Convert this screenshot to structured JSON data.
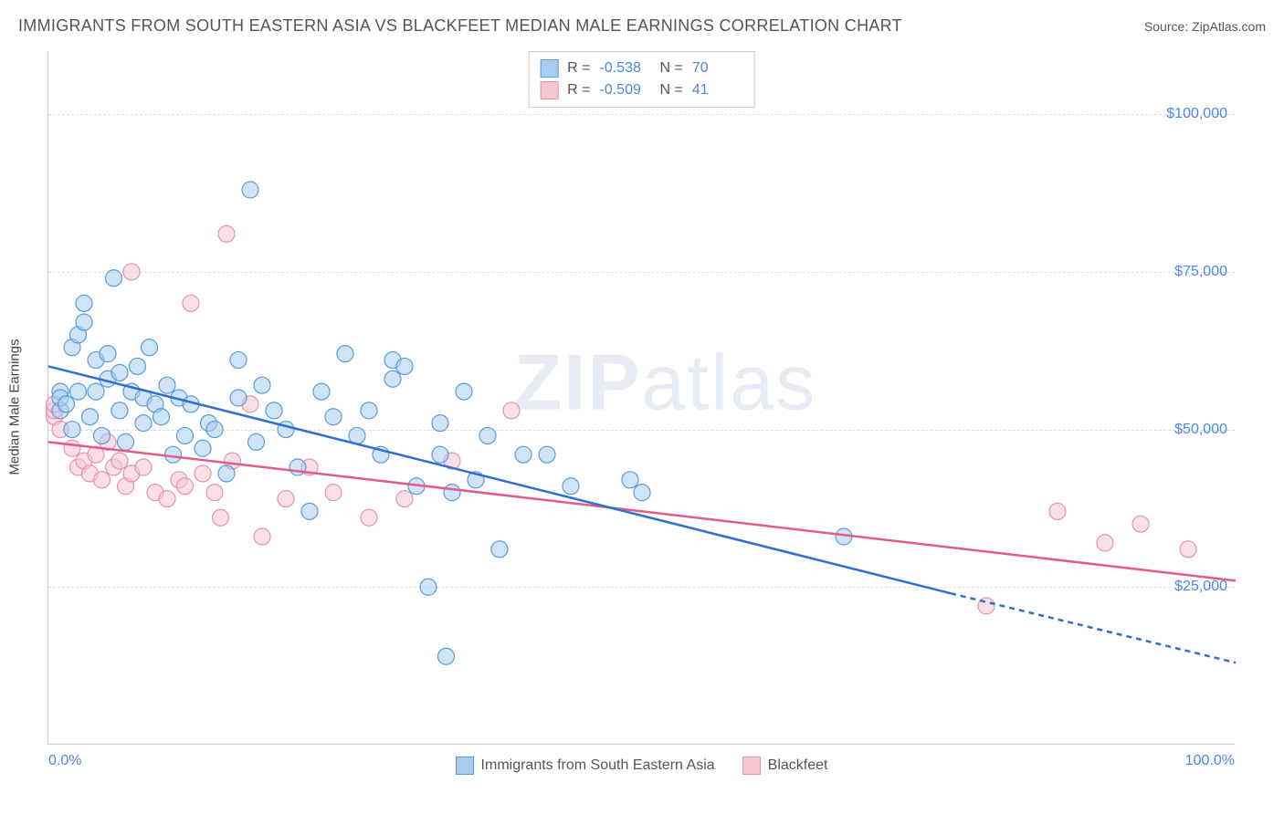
{
  "title": "IMMIGRANTS FROM SOUTH EASTERN ASIA VS BLACKFEET MEDIAN MALE EARNINGS CORRELATION CHART",
  "source": "Source: ZipAtlas.com",
  "y_axis_label": "Median Male Earnings",
  "watermark": {
    "part1": "ZIP",
    "part2": "atlas"
  },
  "colors": {
    "series_a_fill": "#a9cdf0",
    "series_a_stroke": "#5a9bd8",
    "series_a_line": "#2e6fd0",
    "series_b_fill": "#f6c6d2",
    "series_b_stroke": "#e593ab",
    "series_b_line": "#e35b87",
    "axis_text": "#4a86e8",
    "grid": "#dddddd",
    "title_text": "#555555"
  },
  "chart": {
    "type": "scatter",
    "xlim": [
      0,
      100
    ],
    "ylim": [
      0,
      110000
    ],
    "y_ticks": [
      25000,
      50000,
      75000,
      100000
    ],
    "y_tick_labels": [
      "$25,000",
      "$50,000",
      "$75,000",
      "$100,000"
    ],
    "x_tick_left": "0.0%",
    "x_tick_right": "100.0%",
    "marker_radius": 9,
    "marker_opacity": 0.55,
    "line_width": 2.5,
    "series_a": {
      "name": "Immigrants from South Eastern Asia",
      "r_label": "R =",
      "r_value": "-0.538",
      "n_label": "N =",
      "n_value": "70",
      "trend": {
        "x1": 0,
        "y1": 60000,
        "x2": 76,
        "y2": 24000,
        "dash_x2": 100,
        "dash_y2": 13000
      },
      "points": [
        [
          1,
          53000
        ],
        [
          1,
          56000
        ],
        [
          1,
          55000
        ],
        [
          1.5,
          54000
        ],
        [
          2,
          63000
        ],
        [
          2,
          50000
        ],
        [
          2.5,
          65000
        ],
        [
          2.5,
          56000
        ],
        [
          3,
          70000
        ],
        [
          3,
          67000
        ],
        [
          3.5,
          52000
        ],
        [
          4,
          61000
        ],
        [
          4,
          56000
        ],
        [
          4.5,
          49000
        ],
        [
          5,
          58000
        ],
        [
          5,
          62000
        ],
        [
          5.5,
          74000
        ],
        [
          6,
          53000
        ],
        [
          6,
          59000
        ],
        [
          6.5,
          48000
        ],
        [
          7,
          56000
        ],
        [
          7.5,
          60000
        ],
        [
          8,
          55000
        ],
        [
          8,
          51000
        ],
        [
          8.5,
          63000
        ],
        [
          9,
          54000
        ],
        [
          9.5,
          52000
        ],
        [
          10,
          57000
        ],
        [
          10.5,
          46000
        ],
        [
          11,
          55000
        ],
        [
          11.5,
          49000
        ],
        [
          12,
          54000
        ],
        [
          13,
          47000
        ],
        [
          13.5,
          51000
        ],
        [
          14,
          50000
        ],
        [
          15,
          43000
        ],
        [
          16,
          55000
        ],
        [
          16,
          61000
        ],
        [
          17,
          88000
        ],
        [
          17.5,
          48000
        ],
        [
          18,
          57000
        ],
        [
          19,
          53000
        ],
        [
          20,
          50000
        ],
        [
          21,
          44000
        ],
        [
          22,
          37000
        ],
        [
          23,
          56000
        ],
        [
          24,
          52000
        ],
        [
          25,
          62000
        ],
        [
          26,
          49000
        ],
        [
          27,
          53000
        ],
        [
          28,
          46000
        ],
        [
          29,
          61000
        ],
        [
          29,
          58000
        ],
        [
          30,
          60000
        ],
        [
          31,
          41000
        ],
        [
          32,
          25000
        ],
        [
          33,
          46000
        ],
        [
          33,
          51000
        ],
        [
          33.5,
          14000
        ],
        [
          34,
          40000
        ],
        [
          35,
          56000
        ],
        [
          36,
          42000
        ],
        [
          37,
          49000
        ],
        [
          38,
          31000
        ],
        [
          40,
          46000
        ],
        [
          42,
          46000
        ],
        [
          44,
          41000
        ],
        [
          49,
          42000
        ],
        [
          50,
          40000
        ],
        [
          67,
          33000
        ]
      ]
    },
    "series_b": {
      "name": "Blackfeet",
      "r_label": "R =",
      "r_value": "-0.509",
      "n_label": "N =",
      "n_value": "41",
      "trend": {
        "x1": 0,
        "y1": 48000,
        "x2": 100,
        "y2": 26000
      },
      "points": [
        [
          0.5,
          52000
        ],
        [
          0.5,
          53000
        ],
        [
          0.5,
          54000
        ],
        [
          1,
          50000
        ],
        [
          2,
          47000
        ],
        [
          2.5,
          44000
        ],
        [
          3,
          45000
        ],
        [
          3.5,
          43000
        ],
        [
          4,
          46000
        ],
        [
          4.5,
          42000
        ],
        [
          5,
          48000
        ],
        [
          5.5,
          44000
        ],
        [
          6,
          45000
        ],
        [
          6.5,
          41000
        ],
        [
          7,
          43000
        ],
        [
          7,
          75000
        ],
        [
          8,
          44000
        ],
        [
          9,
          40000
        ],
        [
          10,
          39000
        ],
        [
          11,
          42000
        ],
        [
          11.5,
          41000
        ],
        [
          12,
          70000
        ],
        [
          13,
          43000
        ],
        [
          14,
          40000
        ],
        [
          14.5,
          36000
        ],
        [
          15,
          81000
        ],
        [
          15.5,
          45000
        ],
        [
          17,
          54000
        ],
        [
          18,
          33000
        ],
        [
          20,
          39000
        ],
        [
          22,
          44000
        ],
        [
          24,
          40000
        ],
        [
          27,
          36000
        ],
        [
          30,
          39000
        ],
        [
          34,
          45000
        ],
        [
          39,
          53000
        ],
        [
          79,
          22000
        ],
        [
          85,
          37000
        ],
        [
          89,
          32000
        ],
        [
          92,
          35000
        ],
        [
          96,
          31000
        ]
      ]
    }
  }
}
